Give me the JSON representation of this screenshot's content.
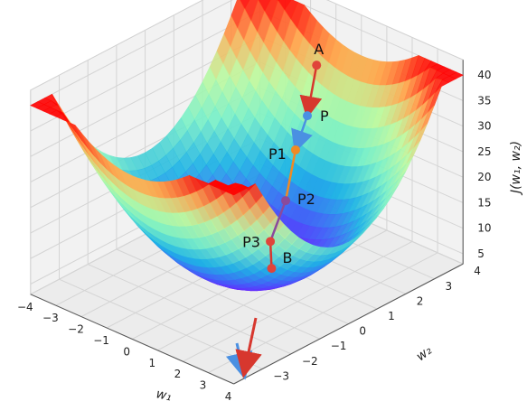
{
  "chart_data": {
    "type": "surface3d",
    "function": "J(w1,w2) = w1^2 + 2*w2^2 + 3",
    "xlabel": "w₁",
    "ylabel": "w₂",
    "zlabel": "J(w₁, w₂)",
    "xlim": [
      -4,
      4
    ],
    "ylim": [
      -4,
      4
    ],
    "zlim": [
      3,
      43
    ],
    "x_ticks": [
      "−4",
      "−3",
      "−2",
      "−1",
      "0",
      "1",
      "2",
      "3",
      "4"
    ],
    "y_ticks": [
      "−3",
      "−2",
      "−1",
      "0",
      "1",
      "2",
      "3",
      "4"
    ],
    "z_ticks": [
      "5",
      "10",
      "15",
      "20",
      "25",
      "30",
      "35",
      "40"
    ],
    "colormap": "rainbow",
    "grid": true,
    "points": [
      {
        "label": "A",
        "color": "#e0443a",
        "x": -1.2,
        "y": 3.5,
        "z": 32.0
      },
      {
        "label": "P",
        "color": "#4a90e2",
        "x": -1.0,
        "y": 3.0,
        "z": 24.0
      },
      {
        "label": "P1",
        "color": "#f08a24",
        "x": -0.9,
        "y": 2.5,
        "z": 19.0
      },
      {
        "label": "P2",
        "color": "#8a4a9c",
        "x": -0.5,
        "y": 1.8,
        "z": 12.0
      },
      {
        "label": "P3",
        "color": "#e0443a",
        "x": -0.2,
        "y": 1.0,
        "z": 7.0
      },
      {
        "label": "B",
        "color": "#e0443a",
        "x": 0.3,
        "y": 0.6,
        "z": 4.0
      }
    ],
    "path_segments": [
      {
        "from": "A",
        "to": "P",
        "color": "#d7372e"
      },
      {
        "from": "P",
        "to": "P1",
        "color": "#4a90e2"
      },
      {
        "from": "P1",
        "to": "P2",
        "color": "#f08a24"
      },
      {
        "from": "P2",
        "to": "P3",
        "color": "#8a4a9c"
      },
      {
        "from": "P3",
        "to": "B",
        "color": "#d7372e"
      }
    ],
    "ground_arrows": [
      {
        "color": "#4a90e2"
      },
      {
        "color": "#d7372e"
      }
    ]
  }
}
